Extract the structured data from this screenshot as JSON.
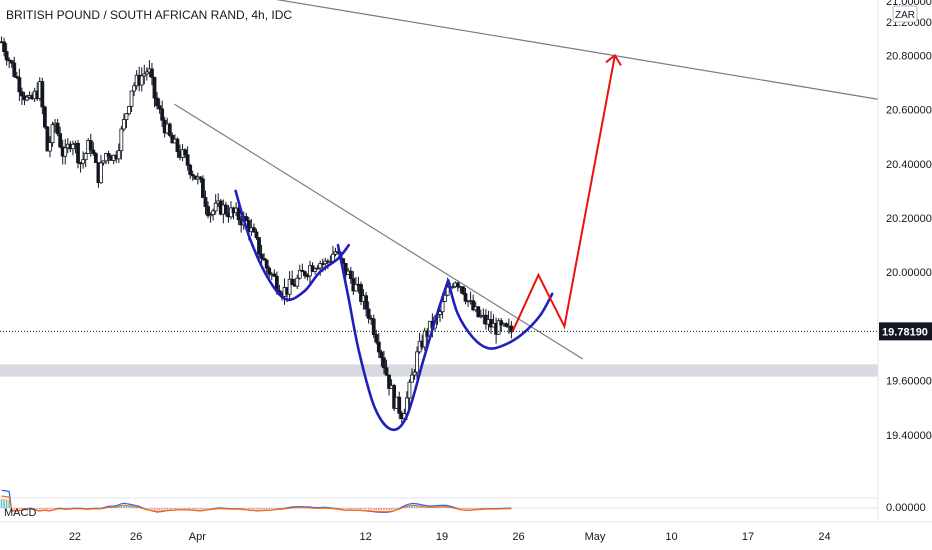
{
  "chart_data": {
    "type": "candlestick",
    "title": "BRITISH POUND / SOUTH AFRICAN RAND, 4h, IDC",
    "currency_badge": "ZAR",
    "ylim": [
      19.3,
      21.1
    ],
    "y_ticks": [
      {
        "value": 21.0,
        "label": "21.00000"
      },
      {
        "value": 20.8,
        "label": "20.80000"
      },
      {
        "value": 20.6,
        "label": "20.60000"
      },
      {
        "value": 20.4,
        "label": "20.40000"
      },
      {
        "value": 20.2,
        "label": "20.20000"
      },
      {
        "value": 20.0,
        "label": "20.00000"
      },
      {
        "value": 19.6,
        "label": "19.60000"
      },
      {
        "value": 19.4,
        "label": "19.40000"
      }
    ],
    "top_tick_partial": "21.20000",
    "last_price": {
      "value": 19.7819,
      "label": "19.78190"
    },
    "x_ticks": [
      {
        "t": 22,
        "label": "22"
      },
      {
        "t": 26,
        "label": "26"
      },
      {
        "t": 30,
        "label": "Apr"
      },
      {
        "t": 41,
        "label": "12"
      },
      {
        "t": 46,
        "label": "19"
      },
      {
        "t": 51,
        "label": "26"
      },
      {
        "t": 56,
        "label": "May"
      },
      {
        "t": 61,
        "label": "10"
      },
      {
        "t": 66,
        "label": "17"
      },
      {
        "t": 71,
        "label": "24"
      }
    ],
    "x_range": [
      17.1,
      74.5
    ],
    "close_anchors": [
      [
        17.2,
        20.85
      ],
      [
        17.6,
        20.8
      ],
      [
        18.3,
        20.7
      ],
      [
        19.0,
        20.62
      ],
      [
        19.7,
        20.68
      ],
      [
        20.2,
        20.45
      ],
      [
        20.7,
        20.55
      ],
      [
        21.3,
        20.42
      ],
      [
        21.8,
        20.5
      ],
      [
        22.4,
        20.4
      ],
      [
        23.0,
        20.48
      ],
      [
        23.5,
        20.35
      ],
      [
        24.1,
        20.45
      ],
      [
        24.6,
        20.42
      ],
      [
        25.2,
        20.55
      ],
      [
        25.7,
        20.68
      ],
      [
        26.3,
        20.72
      ],
      [
        26.8,
        20.75
      ],
      [
        27.3,
        20.62
      ],
      [
        27.8,
        20.55
      ],
      [
        28.3,
        20.48
      ],
      [
        29.0,
        20.43
      ],
      [
        29.6,
        20.38
      ],
      [
        30.2,
        20.32
      ],
      [
        30.8,
        20.22
      ],
      [
        31.5,
        20.24
      ],
      [
        32.2,
        20.22
      ],
      [
        32.8,
        20.2
      ],
      [
        33.3,
        20.18
      ],
      [
        33.9,
        20.1
      ],
      [
        34.5,
        20.02
      ],
      [
        35.1,
        19.97
      ],
      [
        35.6,
        19.93
      ],
      [
        36.2,
        19.95
      ],
      [
        36.7,
        19.98
      ],
      [
        37.3,
        20.02
      ],
      [
        37.9,
        20.04
      ],
      [
        38.4,
        20.03
      ],
      [
        39.0,
        20.08
      ],
      [
        39.5,
        20.02
      ],
      [
        40.0,
        19.98
      ],
      [
        40.6,
        19.92
      ],
      [
        41.2,
        19.85
      ],
      [
        41.8,
        19.75
      ],
      [
        42.4,
        19.62
      ],
      [
        42.9,
        19.52
      ],
      [
        43.4,
        19.48
      ],
      [
        43.8,
        19.55
      ],
      [
        44.3,
        19.68
      ],
      [
        44.8,
        19.76
      ],
      [
        45.3,
        19.8
      ],
      [
        45.8,
        19.84
      ],
      [
        46.3,
        19.92
      ],
      [
        46.8,
        19.98
      ],
      [
        47.3,
        19.95
      ],
      [
        47.8,
        19.88
      ],
      [
        48.3,
        19.84
      ],
      [
        48.8,
        19.82
      ],
      [
        49.3,
        19.8
      ],
      [
        49.8,
        19.79
      ],
      [
        50.3,
        19.78
      ],
      [
        50.6,
        19.7819
      ]
    ],
    "trendlines": [
      {
        "name": "long-resistance",
        "color": "#787b86",
        "points": [
          [
            17.1,
            21.175
          ],
          [
            74.5,
            20.638
          ]
        ]
      },
      {
        "name": "short-resistance",
        "color": "#787b86",
        "points": [
          [
            28.5,
            20.62
          ],
          [
            55.2,
            19.68
          ]
        ]
      }
    ],
    "support_zone": {
      "y1": 19.615,
      "y2": 19.66,
      "color": "#d1d4dc"
    },
    "patterns": [
      {
        "name": "left-shoulder",
        "color": "#1f1fbd",
        "points": [
          [
            32.5,
            20.3
          ],
          [
            33.4,
            20.13
          ],
          [
            34.6,
            19.98
          ],
          [
            35.8,
            19.9
          ],
          [
            37.0,
            19.93
          ],
          [
            38.0,
            20.0
          ],
          [
            39.2,
            20.05
          ],
          [
            39.9,
            20.1
          ]
        ]
      },
      {
        "name": "head",
        "color": "#1f1fbd",
        "points": [
          [
            39.2,
            20.1
          ],
          [
            39.9,
            19.9
          ],
          [
            40.6,
            19.7
          ],
          [
            41.6,
            19.5
          ],
          [
            42.7,
            19.42
          ],
          [
            43.7,
            19.47
          ],
          [
            44.8,
            19.68
          ],
          [
            45.7,
            19.85
          ],
          [
            46.4,
            19.97
          ]
        ]
      },
      {
        "name": "right-shoulder",
        "color": "#1f1fbd",
        "points": [
          [
            46.4,
            19.97
          ],
          [
            47.0,
            19.85
          ],
          [
            48.0,
            19.76
          ],
          [
            49.0,
            19.72
          ],
          [
            50.0,
            19.73
          ],
          [
            51.2,
            19.77
          ],
          [
            52.4,
            19.84
          ],
          [
            53.2,
            19.92
          ]
        ]
      }
    ],
    "projection": {
      "color": "#e8140c",
      "points": [
        [
          50.6,
          19.78
        ],
        [
          52.3,
          19.99
        ],
        [
          54.0,
          19.8
        ],
        [
          57.3,
          20.8
        ]
      ],
      "arrow_tip": [
        57.3,
        20.8
      ]
    },
    "macd": {
      "label": "MACD",
      "tick_label": "0.00000"
    }
  }
}
